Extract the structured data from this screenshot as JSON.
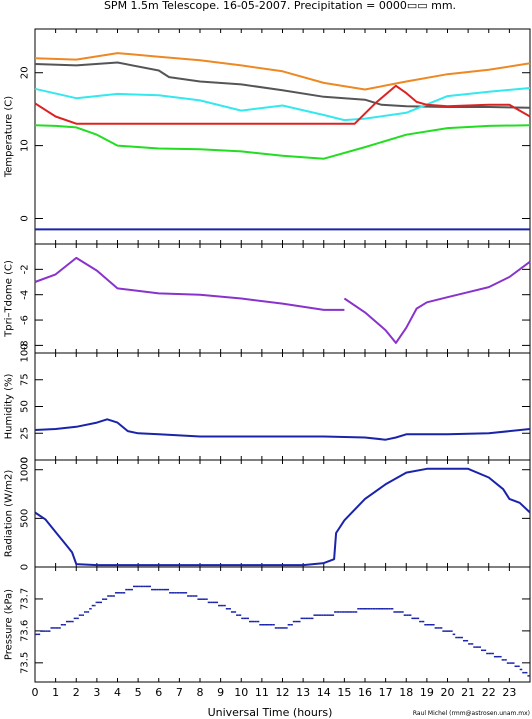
{
  "figure": {
    "title": "SPM 1.5m Telescope. 16-05-2007. Precipitation = 0000▭▭ mm.",
    "xlabel": "Universal Time (hours)",
    "credit": "Raul Michel (rmm@astrosen.unam.mx)",
    "x_ticks": [
      "0",
      "1",
      "2",
      "3",
      "4",
      "5",
      "6",
      "7",
      "8",
      "9",
      "10",
      "11",
      "12",
      "13",
      "14",
      "15",
      "16",
      "17",
      "18",
      "19",
      "20",
      "21",
      "22",
      "23"
    ]
  },
  "chart_data": [
    {
      "type": "line",
      "ylabel": "Temperature (C)",
      "xlim": [
        0,
        24
      ],
      "ylim": [
        -3.5,
        26
      ],
      "y_ticks": [
        0,
        10,
        20
      ],
      "series": [
        {
          "color": "#ee8822",
          "x": [
            0,
            2,
            4,
            6,
            8,
            10,
            12,
            14,
            16,
            18,
            20,
            22,
            24
          ],
          "y": [
            22,
            21.8,
            22.7,
            22.2,
            21.7,
            21,
            20.2,
            18.6,
            17.7,
            18.8,
            19.8,
            20.4,
            21.3
          ]
        },
        {
          "color": "#555555",
          "x": [
            0,
            2,
            4,
            6,
            6.5,
            8,
            10,
            12,
            14,
            16,
            16.8,
            18,
            20,
            22,
            24
          ],
          "y": [
            21.2,
            21,
            21.4,
            20.3,
            19.4,
            18.8,
            18.4,
            17.6,
            16.7,
            16.3,
            15.6,
            15.4,
            15.3,
            15.3,
            15.2
          ]
        },
        {
          "color": "#33e8ee",
          "x": [
            0,
            2,
            4,
            6,
            8,
            10,
            12,
            14,
            15,
            16,
            18,
            20,
            22,
            24
          ],
          "y": [
            17.8,
            16.5,
            17.1,
            16.9,
            16.2,
            14.8,
            15.5,
            14.2,
            13.5,
            13.7,
            14.5,
            16.8,
            17.4,
            17.9
          ]
        },
        {
          "color": "#dd2222",
          "x": [
            0,
            1,
            2,
            3,
            15,
            15.5,
            16.5,
            17.5,
            18,
            18.5,
            19,
            20,
            21,
            22,
            23,
            24
          ],
          "y": [
            15.8,
            14,
            13,
            13,
            13,
            13,
            15.8,
            18.2,
            17.2,
            16,
            15.6,
            15.4,
            15.5,
            15.6,
            15.6,
            14
          ]
        },
        {
          "color": "#22dd22",
          "x": [
            0,
            1,
            2,
            3,
            4,
            6,
            8,
            10,
            12,
            14,
            16,
            18,
            20,
            22,
            24
          ],
          "y": [
            12.8,
            12.7,
            12.5,
            11.5,
            10,
            9.6,
            9.5,
            9.2,
            8.6,
            8.2,
            9.8,
            11.5,
            12.4,
            12.7,
            12.8
          ]
        },
        {
          "color": "#1a24aa",
          "x": [
            0,
            24
          ],
          "y": [
            -1.5,
            -1.5
          ]
        }
      ]
    },
    {
      "type": "line",
      "ylabel": "Tpri–Tdome (C)",
      "xlim": [
        0,
        24
      ],
      "ylim": [
        -8.6,
        0
      ],
      "y_ticks": [
        -8,
        -6,
        -4,
        -2
      ],
      "series": [
        {
          "color": "#8833cc",
          "x": [
            0,
            1,
            2,
            3,
            4,
            6,
            8,
            10,
            12,
            14,
            15
          ],
          "y": [
            -3,
            -2.4,
            -1.1,
            -2.1,
            -3.5,
            -3.9,
            -4,
            -4.3,
            -4.7,
            -5.2,
            -5.2
          ]
        },
        {
          "color": "#8833cc",
          "x": [
            15,
            16,
            17,
            17.5,
            18,
            18.5,
            19,
            20,
            21,
            22,
            23,
            24
          ],
          "y": [
            -4.3,
            -5.4,
            -6.8,
            -7.8,
            -6.6,
            -5.1,
            -4.6,
            -4.2,
            -3.8,
            -3.4,
            -2.6,
            -1.4
          ]
        }
      ]
    },
    {
      "type": "line",
      "ylabel": "Humidity (%)",
      "xlim": [
        0,
        24
      ],
      "ylim": [
        0,
        100
      ],
      "y_ticks": [
        0,
        25,
        50,
        75,
        100
      ],
      "y_tick_labels": [
        "0",
        "25",
        "50",
        "75",
        "100"
      ],
      "series": [
        {
          "color": "#1a24aa",
          "x": [
            0,
            1,
            2,
            3,
            3.5,
            4,
            4.5,
            5,
            6,
            8,
            10,
            12,
            14,
            16,
            17,
            17.5,
            18,
            20,
            22,
            24
          ],
          "y": [
            28,
            29,
            31,
            35,
            38,
            35,
            27,
            25,
            24,
            22,
            22,
            22,
            22,
            21,
            19,
            21,
            24,
            24,
            25,
            29
          ]
        }
      ]
    },
    {
      "type": "line",
      "ylabel": "Radiation (W/m2)",
      "xlim": [
        0,
        24
      ],
      "ylim": [
        0,
        1100
      ],
      "y_ticks": [
        0,
        500,
        1000
      ],
      "series": [
        {
          "color": "#1a24aa",
          "x": [
            0,
            0.5,
            1,
            1.5,
            1.8,
            2,
            3,
            6,
            10,
            13,
            14,
            14.5,
            14.6,
            15,
            16,
            17,
            18,
            19,
            20,
            21,
            22,
            22.7,
            23,
            23.5,
            24
          ],
          "y": [
            560,
            490,
            360,
            230,
            150,
            30,
            20,
            20,
            20,
            20,
            40,
            80,
            350,
            480,
            700,
            850,
            970,
            1010,
            1010,
            1010,
            920,
            800,
            700,
            660,
            560
          ]
        }
      ]
    },
    {
      "type": "scatter",
      "ylabel": "Pressure (kPa)",
      "xlim": [
        0,
        24
      ],
      "ylim": [
        73.44,
        73.8
      ],
      "y_ticks": [
        73.5,
        73.6,
        73.7
      ],
      "y_tick_labels": [
        "73.5",
        "73.6",
        "73.7"
      ],
      "series": [
        {
          "color": "#1a24aa",
          "x": [
            0,
            1,
            2,
            2.5,
            3,
            4,
            5,
            6,
            7,
            8,
            9,
            10,
            11,
            12,
            13,
            14,
            15,
            16,
            17,
            18,
            19,
            20,
            21,
            22,
            23,
            24
          ],
          "y": [
            73.59,
            73.61,
            73.64,
            73.66,
            73.69,
            73.72,
            73.74,
            73.73,
            73.72,
            73.7,
            73.68,
            73.64,
            73.62,
            73.61,
            73.64,
            73.65,
            73.66,
            73.67,
            73.67,
            73.65,
            73.62,
            73.6,
            73.56,
            73.53,
            73.5,
            73.46
          ]
        }
      ]
    }
  ]
}
